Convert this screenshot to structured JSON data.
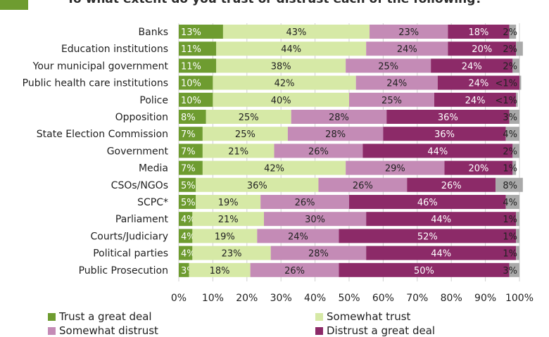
{
  "title": "To what extent do you trust or distrust each of the following?",
  "colors": {
    "corner": "#6e9c30",
    "grid": "#d0d0d0"
  },
  "chart_data": {
    "type": "bar",
    "orientation": "horizontal",
    "stacked": true,
    "title": "To what extent do you trust or distrust each of the following?",
    "xlabel": "",
    "ylabel": "",
    "xlim": [
      0,
      100
    ],
    "x_ticks": [
      "0%",
      "10%",
      "20%",
      "30%",
      "40%",
      "50%",
      "60%",
      "70%",
      "80%",
      "90%",
      "100%"
    ],
    "grid": true,
    "legend_position": "bottom",
    "categories": [
      "Banks",
      "Education institutions",
      "Your municipal government",
      "Public health care institutions",
      "Police",
      "Opposition",
      "State Election Commission",
      "Government",
      "Media",
      "CSOs/NGOs",
      "SCPC*",
      "Parliament",
      "Courts/Judiciary",
      "Political parties",
      "Public Prosecution"
    ],
    "series": [
      {
        "name": "Trust a great deal",
        "color": "#6e9c30",
        "values": [
          13,
          11,
          11,
          10,
          10,
          8,
          7,
          7,
          7,
          5,
          5,
          4,
          4,
          4,
          3
        ]
      },
      {
        "name": "Somewhat trust",
        "color": "#d6e9a6",
        "values": [
          43,
          44,
          38,
          42,
          40,
          25,
          25,
          21,
          42,
          36,
          19,
          21,
          19,
          23,
          18
        ]
      },
      {
        "name": "Somewhat distrust",
        "color": "#c48bb6",
        "values": [
          23,
          24,
          25,
          24,
          25,
          28,
          28,
          26,
          29,
          26,
          26,
          30,
          24,
          28,
          26
        ]
      },
      {
        "name": "Distrust a great deal",
        "color": "#8c2a68",
        "values": [
          18,
          20,
          24,
          24,
          24,
          36,
          36,
          44,
          20,
          26,
          46,
          44,
          52,
          44,
          50
        ]
      },
      {
        "name": "",
        "color": "#a9a9a9",
        "values": [
          2,
          2,
          2,
          0.5,
          0.5,
          3,
          4,
          2,
          1,
          8,
          4,
          1,
          1,
          1,
          3
        ]
      }
    ],
    "value_labels": [
      [
        "13%",
        "43%",
        "23%",
        "18%",
        "2%"
      ],
      [
        "11%",
        "44%",
        "24%",
        "20%",
        "2%"
      ],
      [
        "11%",
        "38%",
        "25%",
        "24%",
        "2%"
      ],
      [
        "10%",
        "42%",
        "24%",
        "24%",
        "<1%"
      ],
      [
        "10%",
        "40%",
        "25%",
        "24%",
        "<1%"
      ],
      [
        "8%",
        "25%",
        "28%",
        "36%",
        "3%"
      ],
      [
        "7%",
        "25%",
        "28%",
        "36%",
        "4%"
      ],
      [
        "7%",
        "21%",
        "26%",
        "44%",
        "2%"
      ],
      [
        "7%",
        "42%",
        "29%",
        "20%",
        "1%"
      ],
      [
        "5%",
        "36%",
        "26%",
        "26%",
        "8%"
      ],
      [
        "5%",
        "19%",
        "26%",
        "46%",
        "4%"
      ],
      [
        "4%",
        "21%",
        "30%",
        "44%",
        "1%"
      ],
      [
        "4%",
        "19%",
        "24%",
        "52%",
        "1%"
      ],
      [
        "4%",
        "23%",
        "28%",
        "44%",
        "1%"
      ],
      [
        "3%",
        "18%",
        "26%",
        "50%",
        "3%"
      ]
    ]
  }
}
